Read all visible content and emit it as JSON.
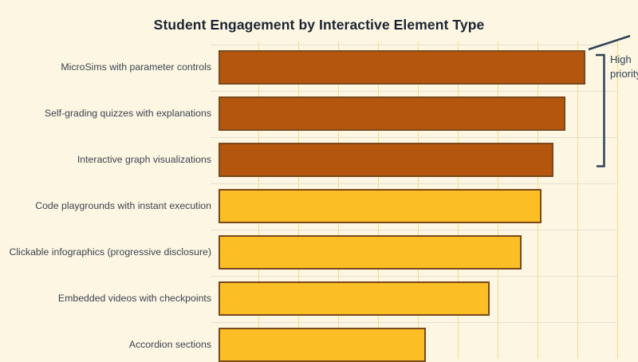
{
  "chart_data": {
    "type": "bar",
    "orientation": "horizontal",
    "title": "Student Engagement by Interactive Element Type",
    "categories": [
      "MicroSims with parameter controls",
      "Self-grading quizzes with explanations",
      "Interactive graph visualizations",
      "Code playgrounds with instant execution",
      "Clickable infographics (progressive disclosure)",
      "Embedded videos with checkpoints",
      "Accordion sections"
    ],
    "values": [
      92,
      87,
      84,
      81,
      76,
      68,
      52
    ],
    "bar_groups": [
      "high",
      "high",
      "high",
      "standard",
      "standard",
      "standard",
      "standard"
    ],
    "xlim": [
      0,
      105
    ],
    "gridline_interval": 10,
    "x_tick_labels_visible": false,
    "grid": "vertical yellow lines + horizontal row-boundary lines",
    "legend_position": "none",
    "annotation": {
      "label_lines": [
        "High",
        "priority"
      ],
      "clipped_at_right_edge": true,
      "bracket_spans_bars": [
        1,
        2,
        3
      ],
      "leader_line": "diagonal line toward top-right corner"
    }
  },
  "colors": {
    "bg": "#fdf6e2",
    "title": "#1a2433",
    "label": "#3b4352",
    "grid-v": "#f5dd85",
    "grid-h": "#e3e0d2",
    "bar-high": "#b4560e",
    "bar-std": "#fbbe24",
    "bar-border": "#7a481a",
    "annot": "#2e4257"
  }
}
